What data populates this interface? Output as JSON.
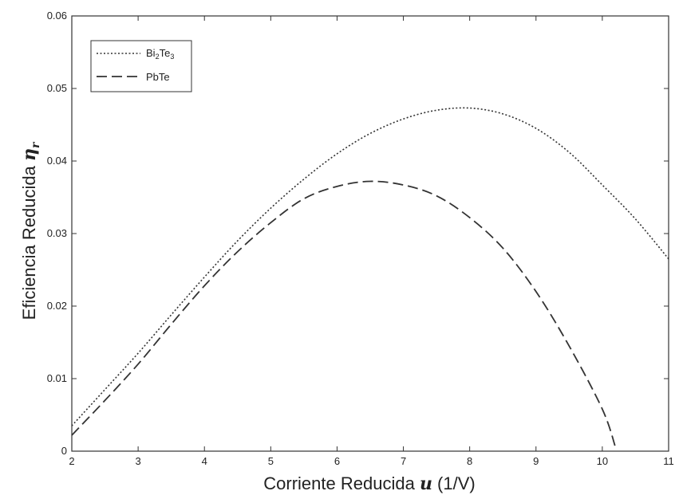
{
  "chart_data": {
    "type": "line",
    "xlabel": {
      "pre": "Corriente Reducida ",
      "symbol": "u",
      "post": " (1/V)"
    },
    "ylabel": {
      "pre": "Eficiencia Reducida ",
      "symbol": "η",
      "sub": "r"
    },
    "xlim": [
      2,
      11
    ],
    "ylim": [
      0,
      0.06
    ],
    "xticks": [
      "2",
      "3",
      "4",
      "5",
      "6",
      "7",
      "8",
      "9",
      "10",
      "11"
    ],
    "yticks": [
      "0",
      "0.01",
      "0.02",
      "0.03",
      "0.04",
      "0.05",
      "0.06"
    ],
    "grid": false,
    "legend_position": "top-left",
    "series": [
      {
        "name": "Bi2Te3",
        "legend": {
          "base1": "Bi",
          "sub1": "2",
          "base2": "Te",
          "sub2": "3"
        },
        "style": "dotted",
        "color": "#333333",
        "x": [
          2.0,
          2.5,
          3.0,
          3.5,
          4.0,
          4.5,
          5.0,
          5.5,
          6.0,
          6.5,
          7.0,
          7.5,
          8.0,
          8.5,
          9.0,
          9.5,
          10.0,
          10.5,
          11.0
        ],
        "y": [
          0.0035,
          0.0085,
          0.0135,
          0.0188,
          0.024,
          0.029,
          0.0335,
          0.0375,
          0.041,
          0.0438,
          0.0458,
          0.047,
          0.0473,
          0.0465,
          0.0445,
          0.0412,
          0.0367,
          0.032,
          0.0265
        ]
      },
      {
        "name": "PbTe",
        "legend": {
          "base1": "PbTe"
        },
        "style": "dashed",
        "color": "#333333",
        "x": [
          2.0,
          2.5,
          3.0,
          3.5,
          4.0,
          4.5,
          5.0,
          5.5,
          6.0,
          6.5,
          7.0,
          7.5,
          8.0,
          8.5,
          9.0,
          9.5,
          10.0,
          10.2
        ],
        "y": [
          0.0022,
          0.007,
          0.012,
          0.0175,
          0.0228,
          0.0275,
          0.0315,
          0.0348,
          0.0365,
          0.0372,
          0.0367,
          0.0352,
          0.0322,
          0.028,
          0.022,
          0.0145,
          0.0058,
          0.0005
        ]
      }
    ]
  }
}
